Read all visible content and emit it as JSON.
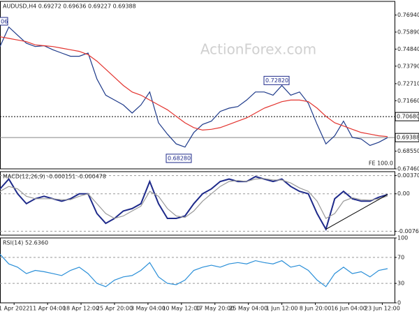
{
  "chart_data": [
    {
      "type": "line",
      "title": "AUDUSD,H4 0.69272 0.69636 0.69227 0.69388",
      "watermark": "ActionForex.com",
      "ylim": [
        0.6746,
        0.7778
      ],
      "yticks": [
        {
          "value": 0.7694,
          "label": "0.76940"
        },
        {
          "value": 0.7589,
          "label": "0.75890"
        },
        {
          "value": 0.7484,
          "label": "0.74840"
        },
        {
          "value": 0.7379,
          "label": "0.73790"
        },
        {
          "value": 0.7271,
          "label": "0.72710"
        },
        {
          "value": 0.7166,
          "label": "0.71660"
        },
        {
          "value": 0.6855,
          "label": "0.68550"
        },
        {
          "value": 0.6746,
          "label": "0.67460"
        }
      ],
      "level": {
        "value": 0.7068,
        "label": "0.70680"
      },
      "last_price": 0.69388,
      "annotations": [
        {
          "value": 0.7282,
          "label": "0.72820"
        },
        {
          "value": 0.6828,
          "label": "0.68280"
        }
      ],
      "edge_label": "06",
      "fe_label": "FE 100.0",
      "series": [
        {
          "name": "AUDUSD",
          "color": "#1e3a8a",
          "values": [
            0.75,
            0.762,
            0.757,
            0.752,
            0.75,
            0.7505,
            0.748,
            0.746,
            0.744,
            0.744,
            0.746,
            0.73,
            0.72,
            0.717,
            0.714,
            0.709,
            0.714,
            0.722,
            0.703,
            0.696,
            0.69,
            0.688,
            0.697,
            0.702,
            0.704,
            0.71,
            0.712,
            0.713,
            0.717,
            0.722,
            0.722,
            0.72,
            0.726,
            0.72,
            0.722,
            0.715,
            0.702,
            0.69,
            0.695,
            0.704,
            0.694,
            0.693,
            0.689,
            0.691,
            0.69388
          ]
        },
        {
          "name": "MA",
          "color": "#e3342f",
          "values": [
            0.756,
            0.755,
            0.754,
            0.753,
            0.751,
            0.7505,
            0.75,
            0.749,
            0.748,
            0.747,
            0.745,
            0.741,
            0.736,
            0.731,
            0.726,
            0.722,
            0.72,
            0.717,
            0.714,
            0.711,
            0.707,
            0.703,
            0.7,
            0.6985,
            0.699,
            0.7,
            0.702,
            0.704,
            0.706,
            0.709,
            0.712,
            0.714,
            0.716,
            0.717,
            0.717,
            0.716,
            0.712,
            0.707,
            0.703,
            0.701,
            0.699,
            0.697,
            0.696,
            0.695,
            0.6945
          ]
        }
      ]
    },
    {
      "type": "line",
      "title": "MACD(12,26,9) -0.000151 -0.000478",
      "ylim": [
        -0.0084,
        0.0045
      ],
      "yticks": [
        0.003703,
        {
          "value": 0,
          "label": "0.00"
        },
        -0.007608
      ],
      "series": [
        {
          "name": "MACD",
          "color": "#1e2a8a",
          "values": [
            0.001,
            0.003,
            0.0,
            -0.002,
            -0.001,
            -0.0005,
            -0.001,
            -0.0015,
            -0.001,
            0.0,
            0.0,
            -0.004,
            -0.006,
            -0.005,
            -0.0035,
            -0.003,
            -0.002,
            0.0025,
            -0.002,
            -0.005,
            -0.005,
            -0.0045,
            -0.002,
            0.0,
            0.001,
            0.0025,
            0.003,
            0.0025,
            0.0025,
            0.0035,
            0.003,
            0.0025,
            0.003,
            0.0015,
            0.0005,
            0.0,
            -0.004,
            -0.0072,
            -0.001,
            0.0005,
            -0.001,
            -0.0015,
            -0.0015,
            -0.0007,
            -0.000151
          ]
        },
        {
          "name": "Signal",
          "color": "#999999",
          "values": [
            0.0005,
            0.0015,
            0.001,
            -0.0005,
            -0.001,
            -0.001,
            -0.001,
            -0.0012,
            -0.0012,
            -0.0005,
            0.0,
            -0.002,
            -0.004,
            -0.005,
            -0.0045,
            -0.0035,
            -0.0025,
            0.0005,
            -0.0005,
            -0.003,
            -0.0045,
            -0.0048,
            -0.0035,
            -0.0015,
            0.0,
            0.0015,
            0.0025,
            0.0027,
            0.0025,
            0.003,
            0.0031,
            0.0028,
            0.0028,
            0.0022,
            0.0012,
            0.0005,
            -0.0015,
            -0.005,
            -0.004,
            -0.0015,
            -0.0008,
            -0.0012,
            -0.0013,
            -0.001,
            -0.000478
          ]
        }
      ]
    },
    {
      "type": "line",
      "title": "RSI(14) 52.6360",
      "ylim": [
        0,
        100
      ],
      "yticks": [
        100,
        70,
        30,
        0
      ],
      "xlim": [
        0,
        44
      ],
      "xticks": [
        {
          "value": 1.6,
          "label": "1 Apr 2022"
        },
        {
          "value": 5.4,
          "label": "11 Apr 04:00"
        },
        {
          "value": 9.2,
          "label": "18 Apr 12:00"
        },
        {
          "value": 13.0,
          "label": "25 Apr 20:00"
        },
        {
          "value": 16.8,
          "label": "3 May 04:00"
        },
        {
          "value": 20.6,
          "label": "10 May 12:00"
        },
        {
          "value": 24.4,
          "label": "17 May 20:00"
        },
        {
          "value": 28.2,
          "label": "25 May 04:00"
        },
        {
          "value": 32.0,
          "label": "1 Jun 12:00"
        },
        {
          "value": 35.8,
          "label": "8 Jun 20:00"
        },
        {
          "value": 39.6,
          "label": "16 Jun 04:00"
        },
        {
          "value": 43.4,
          "label": "23 Jun 12:00"
        }
      ],
      "series": [
        {
          "name": "RSI",
          "color": "#2a8fd8",
          "values": [
            75,
            60,
            55,
            45,
            50,
            48,
            45,
            42,
            50,
            55,
            45,
            30,
            25,
            35,
            40,
            42,
            50,
            62,
            40,
            30,
            28,
            35,
            50,
            55,
            58,
            55,
            60,
            62,
            60,
            65,
            62,
            60,
            65,
            55,
            58,
            50,
            35,
            25,
            45,
            55,
            45,
            48,
            40,
            50,
            52.636
          ]
        }
      ]
    }
  ]
}
